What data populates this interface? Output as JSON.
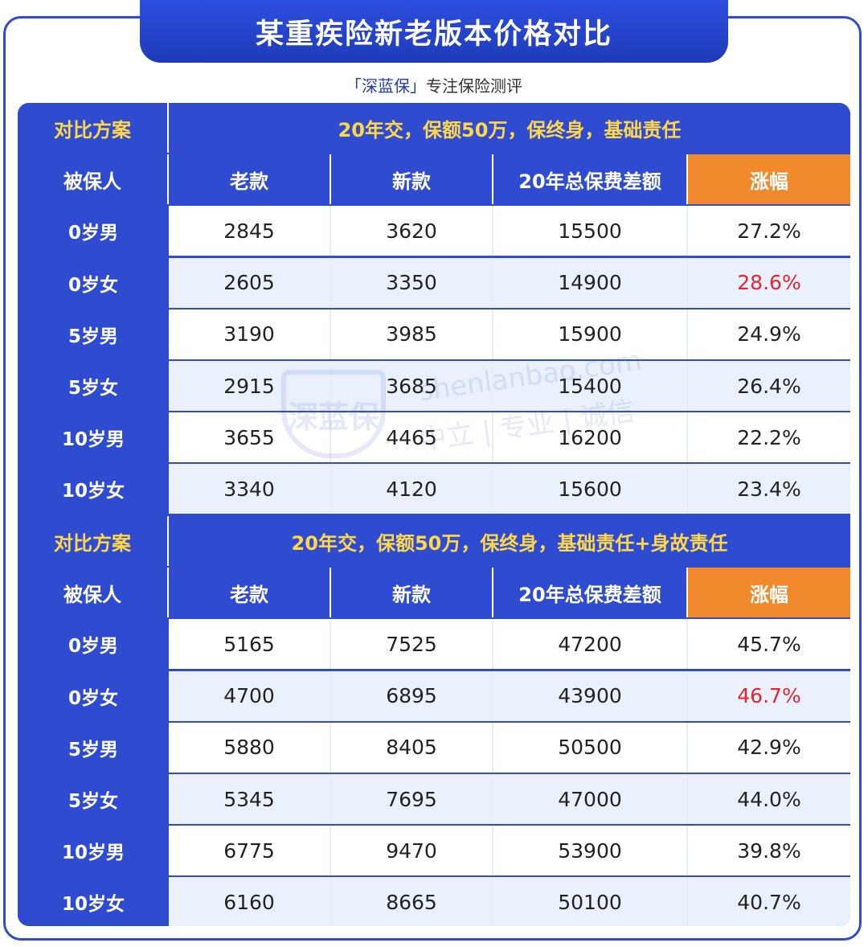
{
  "title": "某重疾险新老版本价格对比",
  "subtitle": {
    "brand": "「深蓝保」",
    "tagline": "专注保险测评"
  },
  "watermark": {
    "logo": "深蓝保",
    "url": "shenlanbao.com",
    "slogan": "中立 | 专业 | 诚信"
  },
  "columns": {
    "insured": "被保人",
    "old": "老款",
    "new": "新款",
    "diff": "20年总保费差额",
    "rise": "涨幅"
  },
  "colors": {
    "primary": "#2f4bd0",
    "accent_orange": "#f08a2c",
    "header_yellow": "#ffd84a",
    "highlight_red": "#e5242b"
  },
  "sections": [
    {
      "label": "对比方案",
      "plan": "20年交，保额50万，保终身，基础责任",
      "rows": [
        {
          "insured": "0岁男",
          "old": "2845",
          "new": "3620",
          "diff": "15500",
          "rise": "27.2%",
          "highlight": false
        },
        {
          "insured": "0岁女",
          "old": "2605",
          "new": "3350",
          "diff": "14900",
          "rise": "28.6%",
          "highlight": true
        },
        {
          "insured": "5岁男",
          "old": "3190",
          "new": "3985",
          "diff": "15900",
          "rise": "24.9%",
          "highlight": false
        },
        {
          "insured": "5岁女",
          "old": "2915",
          "new": "3685",
          "diff": "15400",
          "rise": "26.4%",
          "highlight": false
        },
        {
          "insured": "10岁男",
          "old": "3655",
          "new": "4465",
          "diff": "16200",
          "rise": "22.2%",
          "highlight": false
        },
        {
          "insured": "10岁女",
          "old": "3340",
          "new": "4120",
          "diff": "15600",
          "rise": "23.4%",
          "highlight": false
        }
      ]
    },
    {
      "label": "对比方案",
      "plan": "20年交，保额50万，保终身，基础责任+身故责任",
      "rows": [
        {
          "insured": "0岁男",
          "old": "5165",
          "new": "7525",
          "diff": "47200",
          "rise": "45.7%",
          "highlight": false
        },
        {
          "insured": "0岁女",
          "old": "4700",
          "new": "6895",
          "diff": "43900",
          "rise": "46.7%",
          "highlight": true
        },
        {
          "insured": "5岁男",
          "old": "5880",
          "new": "8405",
          "diff": "50500",
          "rise": "42.9%",
          "highlight": false
        },
        {
          "insured": "5岁女",
          "old": "5345",
          "new": "7695",
          "diff": "47000",
          "rise": "44.0%",
          "highlight": false
        },
        {
          "insured": "10岁男",
          "old": "6775",
          "new": "9470",
          "diff": "53900",
          "rise": "39.8%",
          "highlight": false
        },
        {
          "insured": "10岁女",
          "old": "6160",
          "new": "8665",
          "diff": "50100",
          "rise": "40.7%",
          "highlight": false
        }
      ]
    }
  ]
}
